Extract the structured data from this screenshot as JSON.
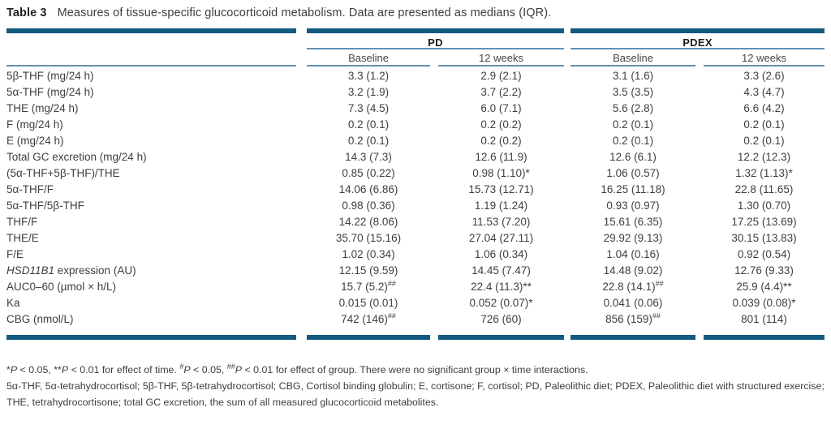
{
  "title": {
    "label": "Table 3",
    "text": "Measures of tissue-specific glucocorticoid metabolism. Data are presented as medians (IQR)."
  },
  "table": {
    "groups": [
      {
        "label": "PD"
      },
      {
        "label": "PDEX"
      }
    ],
    "sub_headers": [
      "Baseline",
      "12 weeks",
      "Baseline",
      "12 weeks"
    ],
    "rows": [
      {
        "label": "5β-THF (mg/24 h)",
        "cells": [
          {
            "v": "3.3 (1.2)"
          },
          {
            "v": "2.9 (2.1)"
          },
          {
            "v": "3.1 (1.6)"
          },
          {
            "v": "3.3 (2.6)"
          }
        ]
      },
      {
        "label": "5α-THF (mg/24 h)",
        "cells": [
          {
            "v": "3.2 (1.9)"
          },
          {
            "v": "3.7 (2.2)"
          },
          {
            "v": "3.5 (3.5)"
          },
          {
            "v": "4.3 (4.7)"
          }
        ]
      },
      {
        "label": "THE (mg/24 h)",
        "cells": [
          {
            "v": "7.3 (4.5)"
          },
          {
            "v": "6.0 (7.1)"
          },
          {
            "v": "5.6 (2.8)"
          },
          {
            "v": "6.6 (4.2)"
          }
        ]
      },
      {
        "label": "F (mg/24 h)",
        "cells": [
          {
            "v": "0.2 (0.1)"
          },
          {
            "v": "0.2 (0.2)"
          },
          {
            "v": "0.2 (0.1)"
          },
          {
            "v": "0.2 (0.1)"
          }
        ]
      },
      {
        "label": "E (mg/24 h)",
        "cells": [
          {
            "v": "0.2 (0.1)"
          },
          {
            "v": "0.2 (0.2)"
          },
          {
            "v": "0.2 (0.1)"
          },
          {
            "v": "0.2 (0.1)"
          }
        ]
      },
      {
        "label": "Total GC excretion (mg/24 h)",
        "cells": [
          {
            "v": "14.3 (7.3)"
          },
          {
            "v": "12.6 (11.9)"
          },
          {
            "v": "12.6 (6.1)"
          },
          {
            "v": "12.2 (12.3)"
          }
        ]
      },
      {
        "label": "(5α-THF+5β-THF)/THE",
        "cells": [
          {
            "v": "0.85 (0.22)"
          },
          {
            "v": "0.98 (1.10)*"
          },
          {
            "v": "1.06 (0.57)"
          },
          {
            "v": "1.32 (1.13)*"
          }
        ]
      },
      {
        "label": "5α-THF/F",
        "cells": [
          {
            "v": "14.06 (6.86)"
          },
          {
            "v": "15.73 (12.71)"
          },
          {
            "v": "16.25 (11.18)"
          },
          {
            "v": "22.8 (11.65)"
          }
        ]
      },
      {
        "label": "5α-THF/5β-THF",
        "cells": [
          {
            "v": "0.98 (0.36)"
          },
          {
            "v": "1.19 (1.24)"
          },
          {
            "v": "0.93 (0.97)"
          },
          {
            "v": "1.30 (0.70)"
          }
        ]
      },
      {
        "label": "THF/F",
        "cells": [
          {
            "v": "14.22 (8.06)"
          },
          {
            "v": "11.53 (7.20)"
          },
          {
            "v": "15.61 (6.35)"
          },
          {
            "v": "17.25 (13.69)"
          }
        ]
      },
      {
        "label": "THE/E",
        "cells": [
          {
            "v": "35.70 (15.16)"
          },
          {
            "v": "27.04 (27.11)"
          },
          {
            "v": "29.92 (9.13)"
          },
          {
            "v": "30.15 (13.83)"
          }
        ]
      },
      {
        "label": "F/E",
        "cells": [
          {
            "v": "1.02 (0.34)"
          },
          {
            "v": "1.06 (0.34)"
          },
          {
            "v": "1.04 (0.16)"
          },
          {
            "v": "0.92 (0.54)"
          }
        ]
      },
      {
        "italic": "HSD11B1",
        "label": " expression (AU)",
        "cells": [
          {
            "v": "12.15 (9.59)"
          },
          {
            "v": "14.45 (7.47)"
          },
          {
            "v": "14.48 (9.02)"
          },
          {
            "v": "12.76 (9.33)"
          }
        ]
      },
      {
        "label": "AUC0–60 (µmol × h/L)",
        "cells": [
          {
            "v": "15.7 (5.2)",
            "sup": "##"
          },
          {
            "v": "22.4 (11.3)**"
          },
          {
            "v": "22.8 (14.1)",
            "sup": "##"
          },
          {
            "v": "25.9 (4.4)**"
          }
        ]
      },
      {
        "label": "Ka",
        "cells": [
          {
            "v": "0.015 (0.01)"
          },
          {
            "v": "0.052 (0.07)*"
          },
          {
            "v": "0.041 (0.06)"
          },
          {
            "v": "0.039 (0.08)*"
          }
        ]
      },
      {
        "label": "CBG (nmol/L)",
        "cells": [
          {
            "v": "742 (146)",
            "sup": "##"
          },
          {
            "v": "726 (60)"
          },
          {
            "v": "856 (159)",
            "sup": "##"
          },
          {
            "v": "801 (114)"
          }
        ]
      }
    ]
  },
  "footnotes": {
    "significance_parts": [
      {
        "t": "*"
      },
      {
        "i": "P"
      },
      {
        "t": " < 0.05, **"
      },
      {
        "i": "P"
      },
      {
        "t": " < 0.01 for effect of time. "
      },
      {
        "sup": "#"
      },
      {
        "i": "P"
      },
      {
        "t": " < 0.05, "
      },
      {
        "sup": "##"
      },
      {
        "i": "P"
      },
      {
        "t": " < 0.01 for effect of group. There were no significant group × time interactions."
      }
    ],
    "abbreviations": "5α-THF, 5α-tetrahydrocortisol; 5β-THF, 5β-tetrahydrocortisol; CBG, Cortisol binding globulin; E, cortisone; F, cortisol; PD, Paleolithic diet; PDEX, Paleolithic diet with structured exercise; THE, tetrahydrocortisone; total GC excretion, the sum of all measured glucocorticoid metabolites."
  },
  "colors": {
    "thick_rule": "#135a80",
    "thin_rule": "#6092b5"
  }
}
